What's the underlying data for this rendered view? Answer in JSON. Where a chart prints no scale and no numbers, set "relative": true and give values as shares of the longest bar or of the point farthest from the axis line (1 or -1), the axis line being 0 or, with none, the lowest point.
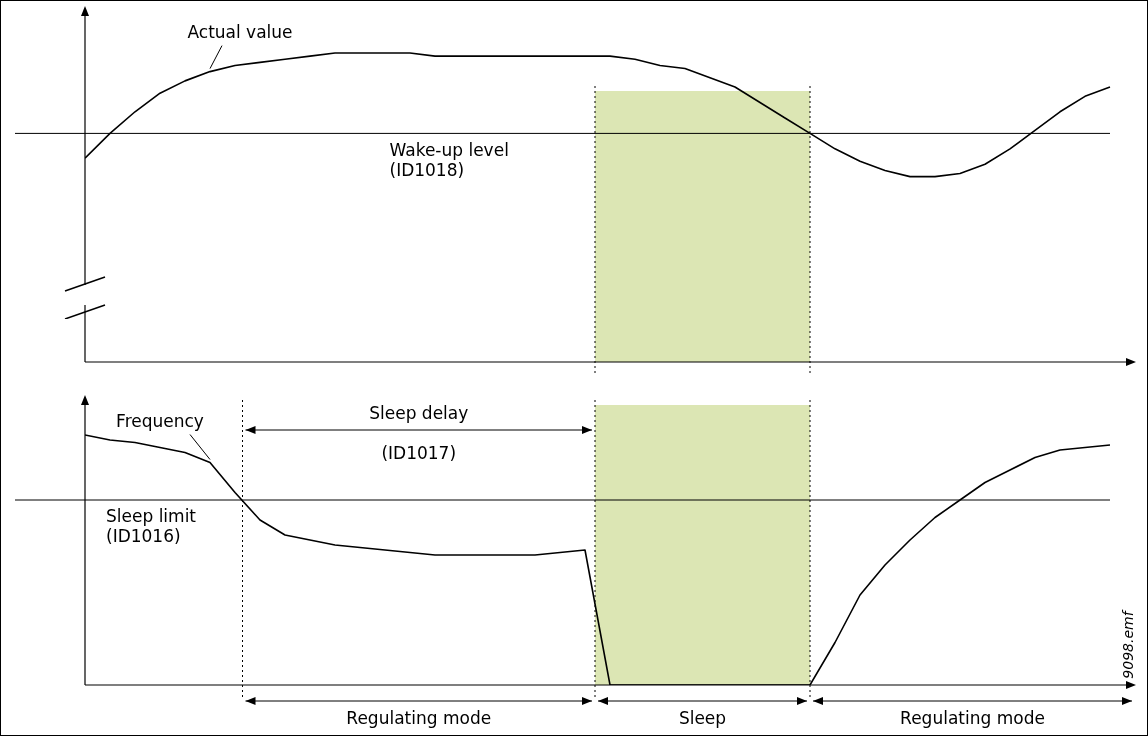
{
  "chart_data": [
    {
      "type": "line",
      "relative": true,
      "tick_labels": false,
      "legend": false,
      "marker": "none",
      "line_style": "solid",
      "categories": [
        null,
        null,
        null,
        null,
        null,
        null,
        null,
        null,
        null,
        null,
        null,
        null,
        null,
        null,
        null,
        null,
        null,
        null,
        null,
        null,
        null,
        null,
        null,
        null,
        null,
        null,
        null,
        null,
        null,
        null,
        null,
        null,
        null,
        null,
        null,
        null,
        null,
        null,
        null,
        null,
        null,
        null
      ],
      "series": [
        {
          "name": "Actual value",
          "color": "#000000",
          "values": [
            0.66,
            0.74,
            0.81,
            0.87,
            0.91,
            0.94,
            0.96,
            0.97,
            0.98,
            0.99,
            1.0,
            1.0,
            1.0,
            1.0,
            0.99,
            0.99,
            0.99,
            0.99,
            0.99,
            0.99,
            0.99,
            0.99,
            0.98,
            0.96,
            0.95,
            0.92,
            0.89,
            0.84,
            0.79,
            0.74,
            0.69,
            0.65,
            0.62,
            0.6,
            0.6,
            0.61,
            0.64,
            0.69,
            0.75,
            0.81,
            0.86,
            0.89
          ]
        }
      ],
      "ref_lines": [
        {
          "axis": "y",
          "value": 0.74,
          "label": "Wake-up level\n(ID1018)",
          "color": "#000000",
          "line_style": "solid"
        }
      ]
    },
    {
      "type": "line",
      "relative": true,
      "tick_labels": false,
      "legend": false,
      "marker": "none",
      "line_style": "solid",
      "categories": [
        null,
        null,
        null,
        null,
        null,
        null,
        null,
        null,
        null,
        null,
        null,
        null,
        null,
        null,
        null,
        null,
        null,
        null,
        null,
        null,
        null,
        null,
        null,
        null,
        null,
        null,
        null,
        null,
        null,
        null,
        null,
        null,
        null,
        null,
        null,
        null,
        null,
        null,
        null,
        null,
        null,
        null
      ],
      "series": [
        {
          "name": "Frequency",
          "color": "#000000",
          "values": [
            1.0,
            0.98,
            0.97,
            0.95,
            0.93,
            0.89,
            0.77,
            0.66,
            0.6,
            0.58,
            0.56,
            0.55,
            0.54,
            0.53,
            0.52,
            0.52,
            0.52,
            0.52,
            0.52,
            0.53,
            0.54,
            0,
            0,
            0,
            0,
            0,
            0,
            0,
            0,
            0,
            0.17,
            0.36,
            0.48,
            0.58,
            0.67,
            0.74,
            0.81,
            0.86,
            0.91,
            0.94,
            0.95,
            0.96
          ]
        }
      ],
      "ref_lines": [
        {
          "axis": "y",
          "value": 0.74,
          "label": "Sleep limit\n(ID1016)",
          "color": "#000000",
          "line_style": "solid"
        }
      ],
      "annotations": [
        "Sleep delay\n(ID1017)",
        "Regulating mode",
        "Sleep",
        "Regulating mode",
        "9098.emf"
      ]
    }
  ]
}
